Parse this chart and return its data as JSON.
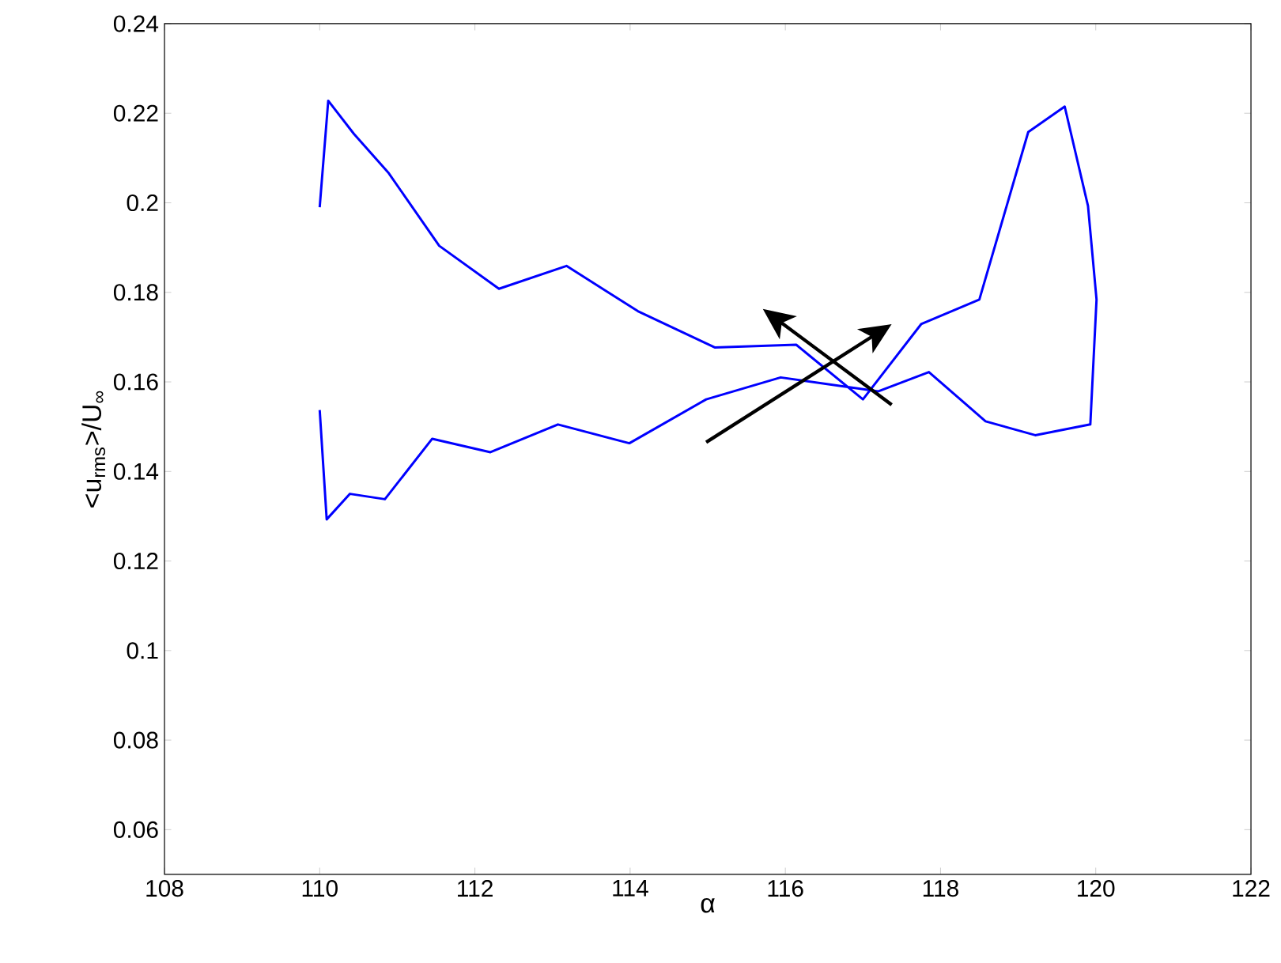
{
  "chart_data": {
    "type": "line",
    "xlabel": "α",
    "ylabel": "<u$_{rms}$>/U$_{∞}$",
    "xlim": [
      108,
      122
    ],
    "ylim": [
      0.05,
      0.24
    ],
    "xticks": [
      108,
      110,
      112,
      114,
      116,
      118,
      120,
      122
    ],
    "yticks": [
      0.06,
      0.08,
      0.1,
      0.12,
      0.14,
      0.16,
      0.18,
      0.2,
      0.22,
      0.24
    ],
    "line_style": "solid",
    "series": [
      {
        "color": "#0000ff",
        "x": [
          110.0,
          110.11,
          110.44,
          110.89,
          111.54,
          112.31,
          113.18,
          114.1,
          115.09,
          116.14,
          117.0,
          117.75,
          118.5,
          119.13,
          119.6,
          119.9,
          120.01,
          119.93,
          119.22,
          118.58,
          117.85,
          117.2,
          115.94,
          114.98,
          113.99,
          113.07,
          112.2,
          111.45,
          110.84,
          110.39,
          110.09,
          110.0
        ],
        "values": [
          0.199,
          0.2228,
          0.2154,
          0.2066,
          0.1904,
          0.1808,
          0.1859,
          0.1758,
          0.1677,
          0.1683,
          0.1561,
          0.1729,
          0.1784,
          0.2158,
          0.2215,
          0.1993,
          0.1784,
          0.1505,
          0.1481,
          0.1512,
          0.1622,
          0.1579,
          0.161,
          0.1561,
          0.1463,
          0.1505,
          0.1443,
          0.1473,
          0.1338,
          0.135,
          0.1293,
          0.1537
        ]
      }
    ]
  }
}
